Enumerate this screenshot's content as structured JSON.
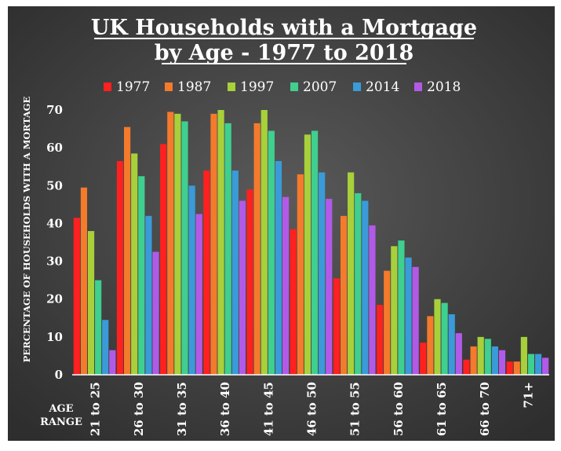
{
  "chart_data": {
    "type": "bar",
    "title_line1": "UK Households with a Mortgage",
    "title_line2": "by Age - 1977 to 2018",
    "ylabel": "PERCENTAGE OF HOUSEHOLDS WITH A MORTAGE",
    "xlabel_line1": "AGE",
    "xlabel_line2": "RANGE",
    "ylim": [
      0,
      70
    ],
    "yticks": [
      "0",
      "10",
      "20",
      "30",
      "40",
      "50",
      "60",
      "70"
    ],
    "legend_position": "top",
    "categories": [
      "21 to 25",
      "26 to 30",
      "31 to 35",
      "36 to 40",
      "41 to 45",
      "46 to 50",
      "51 to 55",
      "56 to 60",
      "61 to 65",
      "66 to 70",
      "71+"
    ],
    "series": [
      {
        "name": "1977",
        "color": "#ff2020",
        "values": [
          41.5,
          56.5,
          61,
          54,
          49,
          38.5,
          25.5,
          18.5,
          8.5,
          4,
          3.5
        ]
      },
      {
        "name": "1987",
        "color": "#f47a2c",
        "values": [
          49.5,
          65.5,
          69.5,
          69,
          66.5,
          53,
          42,
          27.5,
          15.5,
          7.5,
          3.5
        ]
      },
      {
        "name": "1997",
        "color": "#a8d03a",
        "values": [
          38,
          58.5,
          69,
          70,
          70,
          63.5,
          53.5,
          34,
          20,
          10,
          10
        ]
      },
      {
        "name": "2007",
        "color": "#3fcf8e",
        "values": [
          25,
          52.5,
          67,
          66.5,
          64.5,
          64.5,
          48,
          35.5,
          19,
          9.5,
          5.5
        ]
      },
      {
        "name": "2014",
        "color": "#3a9bd8",
        "values": [
          14.5,
          42,
          50,
          54,
          56.5,
          53.5,
          46,
          31,
          16,
          7.5,
          5.5
        ]
      },
      {
        "name": "2018",
        "color": "#b25ae8",
        "values": [
          6.5,
          32.5,
          42.5,
          46,
          47,
          46.5,
          39.5,
          28.5,
          11,
          6.5,
          4.5
        ]
      }
    ]
  }
}
